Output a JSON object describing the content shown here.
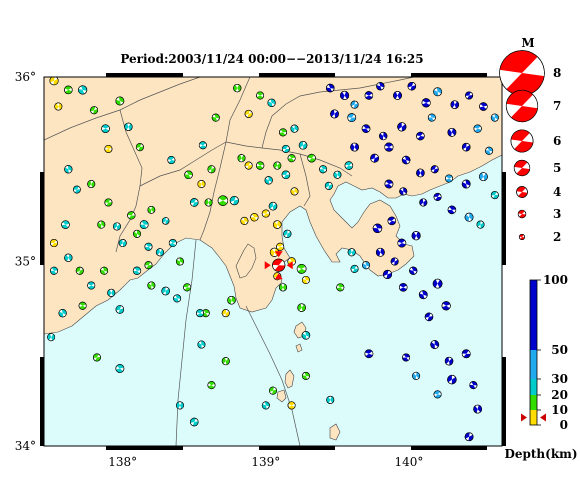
{
  "map": {
    "title": "Period:2003/11/24 00:00−−2013/11/24 16:25",
    "lat_ticks": [
      {
        "value": 36,
        "label": "36°"
      },
      {
        "value": 35,
        "label": "35°"
      },
      {
        "value": 34,
        "label": "34°"
      }
    ],
    "lon_ticks": [
      {
        "value": 138,
        "label": "138°"
      },
      {
        "value": 139,
        "label": "139°"
      },
      {
        "value": 140,
        "label": "140°"
      }
    ],
    "extent": {
      "lon": [
        137.45,
        140.65
      ],
      "lat": [
        34.0,
        36.0
      ]
    },
    "colors": {
      "sea": "#dcfcfc",
      "land": "#fde5c1",
      "boundary": "#555555",
      "mechanism_compression": "#ffffff"
    }
  },
  "magnitude_legend": {
    "label": "M",
    "items": [
      {
        "m": 8,
        "label": "8"
      },
      {
        "m": 7,
        "label": "7"
      },
      {
        "m": 6,
        "label": "6"
      },
      {
        "m": 5,
        "label": "5"
      },
      {
        "m": 4,
        "label": "4"
      },
      {
        "m": 3,
        "label": "3"
      },
      {
        "m": 2,
        "label": "2"
      }
    ],
    "color": "#ff0000"
  },
  "depth_scale": {
    "label": "Depth(km)",
    "ticks": [
      {
        "value": 100,
        "label": "100"
      },
      {
        "value": 50,
        "label": "50"
      },
      {
        "value": 30,
        "label": "30"
      },
      {
        "value": 20,
        "label": "20"
      },
      {
        "value": 10,
        "label": "10"
      },
      {
        "value": 0,
        "label": "0"
      }
    ],
    "bands": [
      {
        "from": 0,
        "to": 10,
        "color": "#ffdd00"
      },
      {
        "from": 10,
        "to": 20,
        "color": "#33dd00"
      },
      {
        "from": 20,
        "to": 30,
        "color": "#00cccc"
      },
      {
        "from": 30,
        "to": 50,
        "color": "#22aaee"
      },
      {
        "from": 50,
        "to": 100,
        "color": "#0000cc"
      }
    ],
    "marker_depth": 5
  },
  "target_event": {
    "lon": 139.09,
    "lat": 34.98,
    "m": 4.5,
    "color": "#ff0000"
  },
  "chart_data": {
    "type": "scatter",
    "title": "Period:2003/11/24 00:00−−2013/11/24 16:25",
    "xlabel": "",
    "ylabel": "",
    "xlim": [
      137.45,
      140.65
    ],
    "ylim": [
      34.0,
      36.0
    ],
    "note_fields": [
      "lon",
      "lat",
      "m",
      "depth_km"
    ],
    "points": [
      [
        137.52,
        35.98,
        3.4,
        8
      ],
      [
        137.62,
        35.93,
        3.2,
        15
      ],
      [
        137.72,
        35.93,
        3.4,
        22
      ],
      [
        137.55,
        35.84,
        3.0,
        8
      ],
      [
        137.8,
        35.82,
        3.0,
        18
      ],
      [
        137.88,
        35.72,
        3.2,
        22
      ],
      [
        137.98,
        35.87,
        3.3,
        15
      ],
      [
        138.04,
        35.73,
        3.1,
        25
      ],
      [
        138.12,
        35.62,
        3.0,
        18
      ],
      [
        137.9,
        35.61,
        3.0,
        8
      ],
      [
        137.62,
        35.5,
        3.1,
        25
      ],
      [
        137.78,
        35.42,
        3.0,
        15
      ],
      [
        137.68,
        35.39,
        2.9,
        22
      ],
      [
        137.6,
        35.2,
        3.2,
        25
      ],
      [
        137.85,
        35.2,
        3.0,
        18
      ],
      [
        137.96,
        35.19,
        3.0,
        25
      ],
      [
        138.06,
        35.25,
        3.1,
        15
      ],
      [
        138.15,
        35.2,
        3.3,
        25
      ],
      [
        138.2,
        35.28,
        2.9,
        18
      ],
      [
        138.3,
        35.22,
        2.8,
        22
      ],
      [
        138.34,
        35.55,
        3.0,
        25
      ],
      [
        138.46,
        35.47,
        3.2,
        15
      ],
      [
        138.55,
        35.42,
        3.0,
        8
      ],
      [
        138.62,
        35.5,
        3.0,
        18
      ],
      [
        138.56,
        35.63,
        3.0,
        25
      ],
      [
        138.65,
        35.78,
        3.0,
        18
      ],
      [
        138.8,
        35.94,
        3.1,
        15
      ],
      [
        138.88,
        35.8,
        3.0,
        8
      ],
      [
        138.96,
        35.9,
        3.0,
        15
      ],
      [
        139.04,
        35.86,
        3.1,
        25
      ],
      [
        138.83,
        35.56,
        3.0,
        18
      ],
      [
        138.88,
        35.52,
        3.0,
        8
      ],
      [
        138.96,
        35.52,
        3.1,
        15
      ],
      [
        139.02,
        35.44,
        3.1,
        25
      ],
      [
        139.08,
        35.52,
        3.0,
        18
      ],
      [
        139.14,
        35.47,
        3.2,
        25
      ],
      [
        139.18,
        35.56,
        3.0,
        15
      ],
      [
        139.2,
        35.38,
        3.0,
        8
      ],
      [
        139.05,
        35.3,
        3.2,
        25
      ],
      [
        139.0,
        35.26,
        3.0,
        8
      ],
      [
        138.92,
        35.24,
        3.1,
        8
      ],
      [
        139.08,
        35.2,
        3.2,
        8
      ],
      [
        139.15,
        35.15,
        3.1,
        25
      ],
      [
        139.1,
        35.08,
        3.0,
        8
      ],
      [
        139.18,
        35.0,
        3.2,
        8
      ],
      [
        139.06,
        35.05,
        3.4,
        8
      ],
      [
        139.08,
        34.92,
        3.0,
        8
      ],
      [
        139.25,
        34.96,
        3.6,
        18
      ],
      [
        139.28,
        34.9,
        3.0,
        8
      ],
      [
        139.12,
        34.86,
        3.0,
        18
      ],
      [
        138.78,
        35.33,
        3.4,
        22
      ],
      [
        138.7,
        35.33,
        3.8,
        18
      ],
      [
        138.85,
        35.22,
        3.0,
        8
      ],
      [
        138.6,
        35.32,
        3.0,
        15
      ],
      [
        138.5,
        35.32,
        3.2,
        25
      ],
      [
        138.35,
        35.1,
        3.0,
        22
      ],
      [
        138.4,
        35.0,
        3.0,
        18
      ],
      [
        138.26,
        35.05,
        3.0,
        25
      ],
      [
        138.18,
        34.98,
        3.0,
        15
      ],
      [
        138.1,
        34.95,
        3.1,
        25
      ],
      [
        138.2,
        34.87,
        3.0,
        18
      ],
      [
        138.3,
        34.84,
        3.2,
        22
      ],
      [
        138.45,
        34.86,
        3.0,
        15
      ],
      [
        138.58,
        34.72,
        3.0,
        18
      ],
      [
        138.76,
        34.79,
        3.2,
        15
      ],
      [
        138.72,
        34.72,
        3.0,
        8
      ],
      [
        138.54,
        34.72,
        3.0,
        22
      ],
      [
        138.38,
        34.8,
        3.0,
        25
      ],
      [
        137.62,
        35.02,
        3.1,
        25
      ],
      [
        137.7,
        34.95,
        3.0,
        18
      ],
      [
        137.78,
        34.87,
        3.0,
        25
      ],
      [
        137.87,
        34.95,
        3.0,
        15
      ],
      [
        137.92,
        34.83,
        3.0,
        25
      ],
      [
        137.98,
        34.74,
        3.2,
        22
      ],
      [
        137.72,
        34.76,
        3.0,
        15
      ],
      [
        137.58,
        34.72,
        3.1,
        25
      ],
      [
        137.5,
        34.59,
        3.0,
        22
      ],
      [
        137.82,
        34.48,
        3.0,
        18
      ],
      [
        137.98,
        34.42,
        3.3,
        22
      ],
      [
        138.55,
        34.55,
        3.0,
        25
      ],
      [
        138.72,
        34.46,
        3.0,
        18
      ],
      [
        139.14,
        35.61,
        3.0,
        22
      ],
      [
        139.12,
        35.7,
        3.0,
        15
      ],
      [
        139.2,
        35.72,
        3.0,
        25
      ],
      [
        139.26,
        35.63,
        3.2,
        22
      ],
      [
        139.32,
        35.56,
        3.2,
        18
      ],
      [
        139.4,
        35.5,
        3.0,
        22
      ],
      [
        139.5,
        35.47,
        3.0,
        25
      ],
      [
        139.44,
        35.41,
        3.0,
        25
      ],
      [
        139.58,
        35.52,
        3.2,
        25
      ],
      [
        139.45,
        35.94,
        3.2,
        70
      ],
      [
        139.55,
        35.9,
        3.4,
        70
      ],
      [
        139.62,
        35.85,
        3.0,
        40
      ],
      [
        139.72,
        35.9,
        3.2,
        70
      ],
      [
        139.8,
        35.95,
        3.1,
        70
      ],
      [
        139.92,
        35.9,
        3.3,
        70
      ],
      [
        140.02,
        35.95,
        3.2,
        70
      ],
      [
        140.12,
        35.86,
        3.4,
        70
      ],
      [
        140.2,
        35.92,
        3.3,
        40
      ],
      [
        140.32,
        35.85,
        3.2,
        70
      ],
      [
        140.42,
        35.9,
        3.0,
        70
      ],
      [
        140.52,
        35.84,
        3.2,
        70
      ],
      [
        140.6,
        35.78,
        3.0,
        40
      ],
      [
        139.48,
        35.8,
        3.3,
        70
      ],
      [
        139.6,
        35.78,
        3.3,
        40
      ],
      [
        139.7,
        35.72,
        3.2,
        70
      ],
      [
        139.82,
        35.68,
        3.1,
        70
      ],
      [
        139.95,
        35.73,
        3.4,
        70
      ],
      [
        140.08,
        35.68,
        3.2,
        70
      ],
      [
        140.16,
        35.78,
        3.0,
        40
      ],
      [
        140.3,
        35.7,
        3.3,
        70
      ],
      [
        140.4,
        35.62,
        3.2,
        70
      ],
      [
        140.48,
        35.72,
        3.1,
        40
      ],
      [
        140.56,
        35.6,
        3.0,
        40
      ],
      [
        139.62,
        35.62,
        3.3,
        70
      ],
      [
        139.76,
        35.56,
        3.3,
        70
      ],
      [
        139.86,
        35.62,
        3.4,
        70
      ],
      [
        139.98,
        35.55,
        3.2,
        70
      ],
      [
        140.08,
        35.48,
        3.2,
        70
      ],
      [
        140.18,
        35.5,
        3.0,
        70
      ],
      [
        140.28,
        35.45,
        3.0,
        40
      ],
      [
        140.4,
        35.42,
        3.3,
        70
      ],
      [
        140.52,
        35.46,
        3.3,
        40
      ],
      [
        140.6,
        35.36,
        3.0,
        22
      ],
      [
        139.86,
        35.42,
        3.3,
        70
      ],
      [
        139.96,
        35.38,
        3.0,
        70
      ],
      [
        140.1,
        35.32,
        3.0,
        70
      ],
      [
        140.2,
        35.35,
        3.0,
        70
      ],
      [
        140.3,
        35.28,
        3.2,
        70
      ],
      [
        140.42,
        35.24,
        3.3,
        40
      ],
      [
        140.5,
        35.2,
        3.0,
        22
      ],
      [
        139.88,
        35.22,
        3.2,
        70
      ],
      [
        139.78,
        35.18,
        3.5,
        70
      ],
      [
        139.8,
        35.05,
        3.3,
        70
      ],
      [
        139.9,
        35.0,
        3.0,
        70
      ],
      [
        139.95,
        35.1,
        3.3,
        70
      ],
      [
        140.03,
        34.95,
        3.1,
        70
      ],
      [
        140.05,
        35.14,
        3.4,
        70
      ],
      [
        139.85,
        34.93,
        3.4,
        70
      ],
      [
        139.96,
        34.86,
        3.2,
        70
      ],
      [
        140.1,
        34.82,
        3.3,
        70
      ],
      [
        140.2,
        34.88,
        3.6,
        70
      ],
      [
        140.14,
        34.7,
        3.2,
        70
      ],
      [
        140.26,
        34.76,
        3.4,
        70
      ],
      [
        139.7,
        34.98,
        3.0,
        40
      ],
      [
        139.6,
        35.05,
        3.0,
        25
      ],
      [
        139.62,
        34.96,
        3.0,
        25
      ],
      [
        139.52,
        34.86,
        3.0,
        18
      ],
      [
        140.18,
        34.55,
        3.3,
        70
      ],
      [
        140.28,
        34.46,
        3.2,
        70
      ],
      [
        140.4,
        34.5,
        3.3,
        70
      ],
      [
        139.98,
        34.48,
        3.0,
        70
      ],
      [
        140.05,
        34.38,
        3.0,
        40
      ],
      [
        140.3,
        34.36,
        3.5,
        70
      ],
      [
        140.2,
        34.28,
        3.0,
        40
      ],
      [
        140.45,
        34.33,
        3.0,
        70
      ],
      [
        140.48,
        34.2,
        3.3,
        70
      ],
      [
        140.42,
        34.05,
        3.3,
        70
      ],
      [
        139.72,
        34.5,
        3.3,
        70
      ],
      [
        139.28,
        34.38,
        3.0,
        18
      ],
      [
        139.45,
        34.25,
        3.0,
        25
      ],
      [
        139.05,
        34.3,
        3.0,
        18
      ],
      [
        139.18,
        34.22,
        3.0,
        8
      ],
      [
        139.0,
        34.22,
        3.0,
        22
      ],
      [
        138.4,
        34.22,
        3.0,
        22
      ],
      [
        138.5,
        34.13,
        3.2,
        25
      ],
      [
        138.62,
        34.33,
        3.0,
        15
      ],
      [
        139.28,
        34.6,
        3.2,
        25
      ],
      [
        139.25,
        34.75,
        3.2,
        15
      ],
      [
        137.9,
        35.32,
        3.0,
        15
      ],
      [
        138.18,
        35.08,
        3.0,
        22
      ],
      [
        138.1,
        35.15,
        3.0,
        18
      ],
      [
        138.0,
        35.1,
        3.0,
        25
      ],
      [
        137.52,
        35.1,
        3.0,
        8
      ],
      [
        137.52,
        34.95,
        3.0,
        25
      ]
    ]
  }
}
